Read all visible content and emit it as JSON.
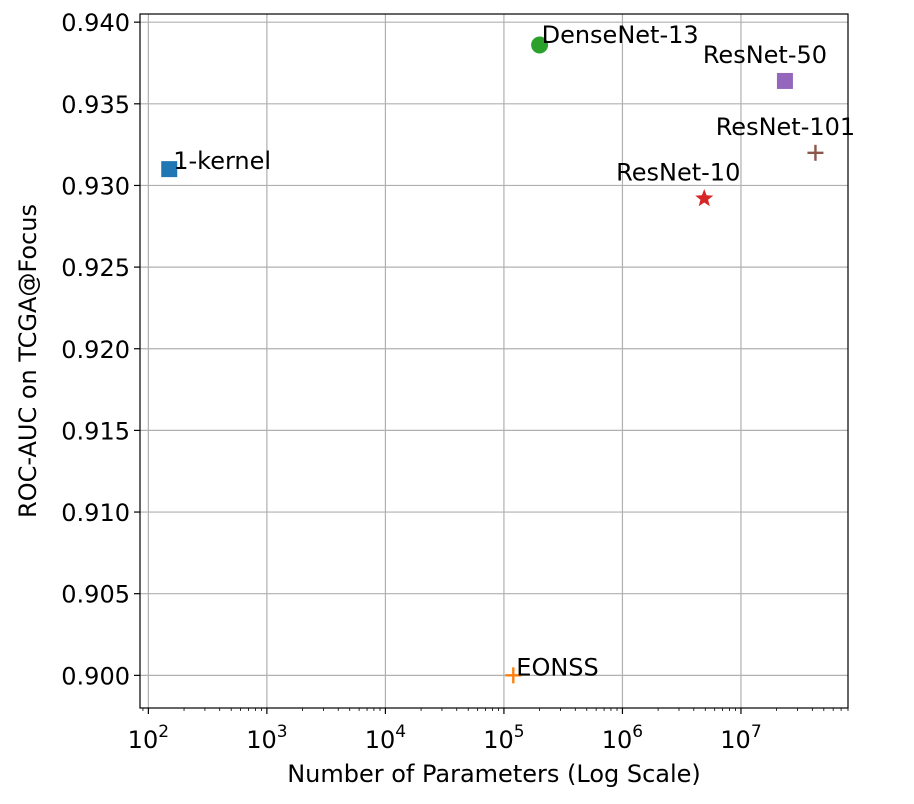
{
  "chart_data": {
    "type": "scatter",
    "title": "",
    "xlabel": "Number of Parameters (Log Scale)",
    "ylabel": "ROC-AUC on TCGA@Focus",
    "x_scale": "log",
    "xlim": [
      85,
      80000000
    ],
    "ylim": [
      0.898,
      0.9405
    ],
    "grid": true,
    "legend": "none",
    "x_ticks": [
      {
        "base": "10",
        "exp": "2",
        "value": 100
      },
      {
        "base": "10",
        "exp": "3",
        "value": 1000
      },
      {
        "base": "10",
        "exp": "4",
        "value": 10000
      },
      {
        "base": "10",
        "exp": "5",
        "value": 100000
      },
      {
        "base": "10",
        "exp": "6",
        "value": 1000000
      },
      {
        "base": "10",
        "exp": "7",
        "value": 10000000
      }
    ],
    "y_ticks": [
      "0.900",
      "0.905",
      "0.910",
      "0.915",
      "0.920",
      "0.925",
      "0.930",
      "0.935",
      "0.940"
    ],
    "points": [
      {
        "label": "1-kernel",
        "x": 150,
        "y": 0.931,
        "color": "#1f77b4",
        "marker": "square"
      },
      {
        "label": "EONSS",
        "x": 120000,
        "y": 0.9,
        "color": "#ff7f0e",
        "marker": "plus"
      },
      {
        "label": "DenseNet-13",
        "x": 200000,
        "y": 0.9386,
        "color": "#2ca02c",
        "marker": "circle"
      },
      {
        "label": "ResNet-10",
        "x": 4900000,
        "y": 0.9292,
        "color": "#d62728",
        "marker": "star"
      },
      {
        "label": "ResNet-50",
        "x": 23500000,
        "y": 0.9364,
        "color": "#9467bd",
        "marker": "square"
      },
      {
        "label": "ResNet-101",
        "x": 42500000,
        "y": 0.932,
        "color": "#8c564b",
        "marker": "plus"
      }
    ]
  }
}
